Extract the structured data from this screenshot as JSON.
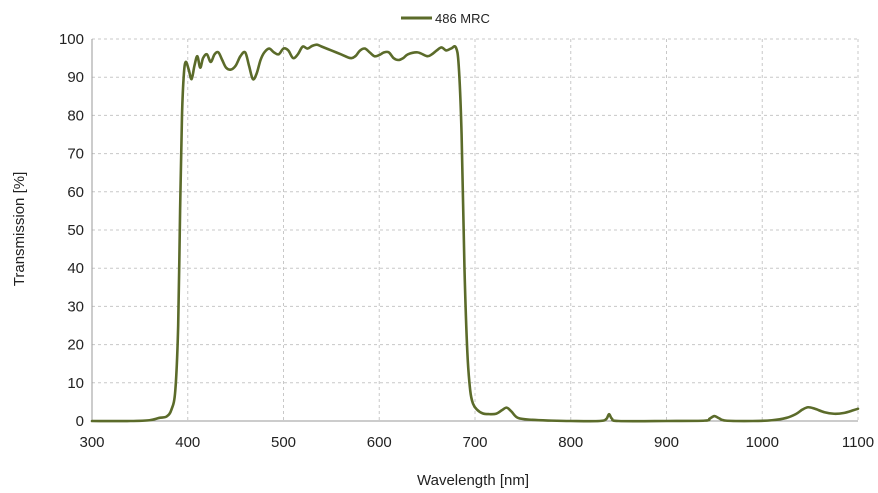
{
  "chart_data": {
    "type": "line",
    "title": "",
    "xlabel": "Wavelength [nm]",
    "ylabel": "Transmission [%]",
    "xlim": [
      300,
      1100
    ],
    "ylim": [
      0,
      100
    ],
    "x_ticks": [
      300,
      400,
      500,
      600,
      700,
      800,
      900,
      1000,
      1100
    ],
    "y_ticks": [
      0,
      10,
      20,
      30,
      40,
      50,
      60,
      70,
      80,
      90,
      100
    ],
    "grid": {
      "x": "dashed",
      "y": "dashed"
    },
    "legend": {
      "placement": "top-center"
    },
    "series": [
      {
        "name": "486 MRC",
        "color": "#5b6b2a",
        "points": [
          [
            300,
            0
          ],
          [
            340,
            0
          ],
          [
            360,
            0.2
          ],
          [
            370,
            0.8
          ],
          [
            378,
            1.2
          ],
          [
            383,
            3
          ],
          [
            387,
            8
          ],
          [
            390,
            25
          ],
          [
            392,
            55
          ],
          [
            394,
            80
          ],
          [
            396,
            91
          ],
          [
            398,
            94
          ],
          [
            401,
            92
          ],
          [
            404,
            89.5
          ],
          [
            407,
            93
          ],
          [
            410,
            95.5
          ],
          [
            413,
            92.5
          ],
          [
            416,
            95
          ],
          [
            420,
            96
          ],
          [
            424,
            94
          ],
          [
            428,
            96
          ],
          [
            432,
            96.5
          ],
          [
            436,
            94.5
          ],
          [
            440,
            92.5
          ],
          [
            445,
            92
          ],
          [
            450,
            93
          ],
          [
            455,
            95.5
          ],
          [
            460,
            96.5
          ],
          [
            464,
            93
          ],
          [
            468,
            89.5
          ],
          [
            472,
            91
          ],
          [
            476,
            94.5
          ],
          [
            480,
            96.5
          ],
          [
            485,
            97.5
          ],
          [
            490,
            96.5
          ],
          [
            495,
            96
          ],
          [
            500,
            97.5
          ],
          [
            505,
            97
          ],
          [
            510,
            95
          ],
          [
            515,
            96
          ],
          [
            520,
            98
          ],
          [
            525,
            97.5
          ],
          [
            530,
            98.2
          ],
          [
            535,
            98.5
          ],
          [
            540,
            98
          ],
          [
            550,
            97
          ],
          [
            560,
            96
          ],
          [
            570,
            95
          ],
          [
            575,
            95.5
          ],
          [
            580,
            97
          ],
          [
            585,
            97.5
          ],
          [
            590,
            96.5
          ],
          [
            595,
            95.5
          ],
          [
            600,
            95.8
          ],
          [
            605,
            96.5
          ],
          [
            610,
            96.5
          ],
          [
            615,
            95
          ],
          [
            620,
            94.5
          ],
          [
            625,
            95
          ],
          [
            630,
            96
          ],
          [
            640,
            96.5
          ],
          [
            650,
            95.5
          ],
          [
            655,
            96
          ],
          [
            660,
            97
          ],
          [
            665,
            97.8
          ],
          [
            670,
            97
          ],
          [
            675,
            97.5
          ],
          [
            680,
            97.8
          ],
          [
            683,
            93
          ],
          [
            686,
            75
          ],
          [
            689,
            40
          ],
          [
            692,
            18
          ],
          [
            695,
            8
          ],
          [
            698,
            4.5
          ],
          [
            702,
            3
          ],
          [
            708,
            2
          ],
          [
            715,
            1.8
          ],
          [
            722,
            1.9
          ],
          [
            728,
            2.8
          ],
          [
            733,
            3.5
          ],
          [
            738,
            2.5
          ],
          [
            745,
            0.8
          ],
          [
            760,
            0.3
          ],
          [
            780,
            0.1
          ],
          [
            800,
            0
          ],
          [
            830,
            0
          ],
          [
            837,
            0.5
          ],
          [
            840,
            1.8
          ],
          [
            843,
            0.6
          ],
          [
            850,
            0
          ],
          [
            900,
            0
          ],
          [
            940,
            0.1
          ],
          [
            945,
            0.6
          ],
          [
            950,
            1.3
          ],
          [
            955,
            0.7
          ],
          [
            962,
            0.1
          ],
          [
            990,
            0
          ],
          [
            1010,
            0.2
          ],
          [
            1025,
            0.8
          ],
          [
            1035,
            1.8
          ],
          [
            1042,
            3
          ],
          [
            1048,
            3.6
          ],
          [
            1055,
            3.2
          ],
          [
            1065,
            2.3
          ],
          [
            1075,
            1.9
          ],
          [
            1085,
            2.1
          ],
          [
            1095,
            2.8
          ],
          [
            1100,
            3.2
          ]
        ]
      }
    ]
  }
}
